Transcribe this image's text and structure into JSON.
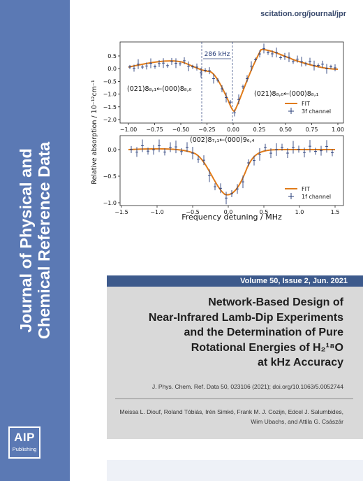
{
  "url": "scitation.org/journal/jpr",
  "journal_title": [
    "Journal of Physical and",
    "Chemical Reference Data"
  ],
  "publisher_logo": {
    "line1": "AIP",
    "line2": "Publishing"
  },
  "issue_banner": "Volume 50, Issue 2, Jun. 2021",
  "article_title": [
    "Network-Based Design of",
    "Near-Infrared Lamb-Dip Experiments",
    "and the Determination of Pure",
    "Rotational Energies of H₂¹⁸O",
    "at kHz Accuracy"
  ],
  "citation": "J. Phys. Chem. Ref. Data 50, 023106 (2021); doi.org/10.1063/5.0052744",
  "authors": [
    "Meissa L. Diouf, Roland Tóbiás, Irén Simkó, Frank M. J. Cozijn, Edcel J. Salumbides,",
    "Wim Ubachs, and Attila G. Császár"
  ],
  "figure": {
    "ylabel": "Relative absorption / 10⁻¹²cm⁻¹",
    "xlabel": "Frequency detuning / MHz",
    "top": {
      "annotation_width": "286 kHz",
      "label_left": "(021)8₈,₁←(000)8₈,₀",
      "label_right": "(021)8₈,₀←(000)8₈,₁",
      "legend": [
        "FIT",
        "3f channel"
      ],
      "xticks": [
        "−1.00",
        "−0.75",
        "−0.50",
        "−0.25",
        "0.00",
        "0.25",
        "0.50",
        "0.75",
        "1.00"
      ],
      "yticks": [
        "0.5",
        "0.0",
        "−0.5",
        "−1.0",
        "−1.5",
        "−2.0"
      ]
    },
    "bottom": {
      "label": "(002)8₇,₁←(000)9₆,₄",
      "legend": [
        "FIT",
        "1f channel"
      ],
      "xticks": [
        "−1.5",
        "−1.0",
        "−0.5",
        "0.0",
        "0.5",
        "1.0",
        "1.5"
      ],
      "yticks": [
        "0.0",
        "−0.5",
        "−1.0"
      ]
    },
    "colors": {
      "fit": "#e07b1a",
      "data": "#2a3f7a"
    }
  }
}
